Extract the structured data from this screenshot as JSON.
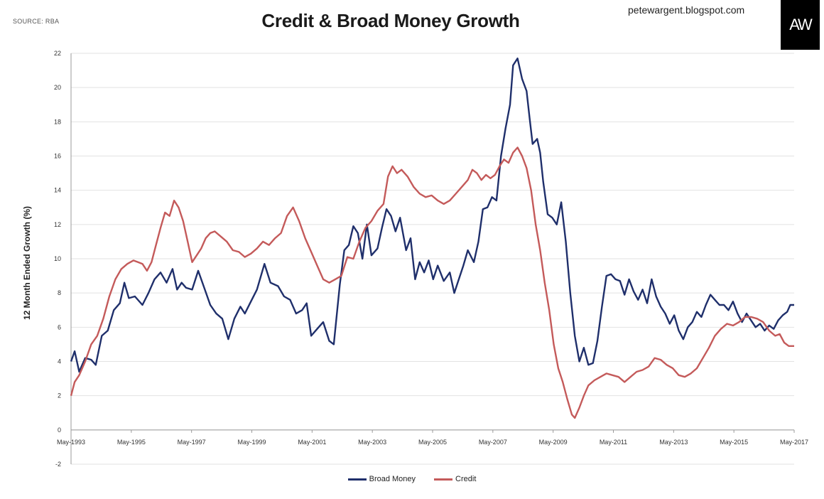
{
  "header": {
    "source": "SOURCE: RBA",
    "title": "Credit & Broad Money Growth",
    "blog": "petewargent.blogspot.com",
    "logo_text": "AW"
  },
  "colors": {
    "broad_money": "#1f2f6b",
    "credit": "#c45a5a",
    "grid": "#e2e2e2",
    "axis": "#999999"
  },
  "chart_data": {
    "type": "line",
    "title": "Credit & Broad Money Growth",
    "xlabel": "",
    "ylabel": "12 Month Ended Growth (%)",
    "ylim": [
      -2,
      22
    ],
    "yticks": [
      -2,
      0,
      2,
      4,
      6,
      8,
      10,
      12,
      14,
      16,
      18,
      20,
      22
    ],
    "xlim": [
      1993.33,
      2017.33
    ],
    "xticks": [
      {
        "x": 1993.33,
        "label": "May-1993"
      },
      {
        "x": 1995.33,
        "label": "May-1995"
      },
      {
        "x": 1997.33,
        "label": "May-1997"
      },
      {
        "x": 1999.33,
        "label": "May-1999"
      },
      {
        "x": 2001.33,
        "label": "May-2001"
      },
      {
        "x": 2003.33,
        "label": "May-2003"
      },
      {
        "x": 2005.33,
        "label": "May-2005"
      },
      {
        "x": 2007.33,
        "label": "May-2007"
      },
      {
        "x": 2009.33,
        "label": "May-2009"
      },
      {
        "x": 2011.33,
        "label": "May-2011"
      },
      {
        "x": 2013.33,
        "label": "May-2013"
      },
      {
        "x": 2015.33,
        "label": "May-2015"
      },
      {
        "x": 2017.33,
        "label": "May-2017"
      }
    ],
    "grid": true,
    "legend_position": "bottom-center",
    "series": [
      {
        "name": "Broad Money",
        "points": [
          [
            1993.33,
            4.0
          ],
          [
            1993.45,
            4.6
          ],
          [
            1993.6,
            3.4
          ],
          [
            1993.8,
            4.2
          ],
          [
            1994.0,
            4.1
          ],
          [
            1994.15,
            3.8
          ],
          [
            1994.35,
            5.5
          ],
          [
            1994.55,
            5.8
          ],
          [
            1994.75,
            7.0
          ],
          [
            1994.95,
            7.4
          ],
          [
            1995.1,
            8.6
          ],
          [
            1995.25,
            7.7
          ],
          [
            1995.45,
            7.8
          ],
          [
            1995.7,
            7.3
          ],
          [
            1995.9,
            8.0
          ],
          [
            1996.1,
            8.8
          ],
          [
            1996.3,
            9.2
          ],
          [
            1996.5,
            8.6
          ],
          [
            1996.7,
            9.4
          ],
          [
            1996.85,
            8.2
          ],
          [
            1997.0,
            8.6
          ],
          [
            1997.15,
            8.3
          ],
          [
            1997.35,
            8.2
          ],
          [
            1997.55,
            9.3
          ],
          [
            1997.75,
            8.3
          ],
          [
            1997.95,
            7.3
          ],
          [
            1998.15,
            6.8
          ],
          [
            1998.35,
            6.5
          ],
          [
            1998.55,
            5.3
          ],
          [
            1998.75,
            6.5
          ],
          [
            1998.95,
            7.2
          ],
          [
            1999.1,
            6.8
          ],
          [
            1999.3,
            7.5
          ],
          [
            1999.5,
            8.2
          ],
          [
            1999.75,
            9.7
          ],
          [
            1999.95,
            8.6
          ],
          [
            2000.2,
            8.4
          ],
          [
            2000.4,
            7.8
          ],
          [
            2000.6,
            7.6
          ],
          [
            2000.8,
            6.8
          ],
          [
            2001.0,
            7.0
          ],
          [
            2001.15,
            7.4
          ],
          [
            2001.3,
            5.5
          ],
          [
            2001.5,
            5.9
          ],
          [
            2001.7,
            6.3
          ],
          [
            2001.9,
            5.2
          ],
          [
            2002.05,
            5.0
          ],
          [
            2002.25,
            8.5
          ],
          [
            2002.4,
            10.5
          ],
          [
            2002.55,
            10.8
          ],
          [
            2002.7,
            11.9
          ],
          [
            2002.85,
            11.5
          ],
          [
            2003.0,
            10.0
          ],
          [
            2003.15,
            12.0
          ],
          [
            2003.3,
            10.2
          ],
          [
            2003.5,
            10.6
          ],
          [
            2003.65,
            11.8
          ],
          [
            2003.8,
            12.9
          ],
          [
            2003.95,
            12.5
          ],
          [
            2004.1,
            11.6
          ],
          [
            2004.25,
            12.4
          ],
          [
            2004.45,
            10.5
          ],
          [
            2004.6,
            11.2
          ],
          [
            2004.75,
            8.8
          ],
          [
            2004.9,
            9.8
          ],
          [
            2005.05,
            9.2
          ],
          [
            2005.2,
            9.9
          ],
          [
            2005.35,
            8.8
          ],
          [
            2005.5,
            9.6
          ],
          [
            2005.7,
            8.7
          ],
          [
            2005.9,
            9.2
          ],
          [
            2006.05,
            8.0
          ],
          [
            2006.2,
            8.8
          ],
          [
            2006.35,
            9.6
          ],
          [
            2006.5,
            10.5
          ],
          [
            2006.7,
            9.8
          ],
          [
            2006.85,
            11.0
          ],
          [
            2007.0,
            12.9
          ],
          [
            2007.15,
            13.0
          ],
          [
            2007.3,
            13.6
          ],
          [
            2007.45,
            13.4
          ],
          [
            2007.6,
            16.0
          ],
          [
            2007.75,
            17.6
          ],
          [
            2007.9,
            19.0
          ],
          [
            2008.0,
            21.3
          ],
          [
            2008.15,
            21.7
          ],
          [
            2008.3,
            20.5
          ],
          [
            2008.45,
            19.8
          ],
          [
            2008.55,
            18.2
          ],
          [
            2008.65,
            16.7
          ],
          [
            2008.8,
            17.0
          ],
          [
            2008.9,
            16.2
          ],
          [
            2009.0,
            14.5
          ],
          [
            2009.15,
            12.6
          ],
          [
            2009.3,
            12.4
          ],
          [
            2009.45,
            12.0
          ],
          [
            2009.6,
            13.3
          ],
          [
            2009.75,
            11.0
          ],
          [
            2009.9,
            8.0
          ],
          [
            2010.05,
            5.5
          ],
          [
            2010.2,
            4.0
          ],
          [
            2010.35,
            4.8
          ],
          [
            2010.5,
            3.8
          ],
          [
            2010.65,
            3.9
          ],
          [
            2010.8,
            5.2
          ],
          [
            2010.95,
            7.2
          ],
          [
            2011.1,
            9.0
          ],
          [
            2011.25,
            9.1
          ],
          [
            2011.4,
            8.8
          ],
          [
            2011.55,
            8.7
          ],
          [
            2011.7,
            7.9
          ],
          [
            2011.85,
            8.8
          ],
          [
            2012.0,
            8.1
          ],
          [
            2012.15,
            7.6
          ],
          [
            2012.3,
            8.2
          ],
          [
            2012.45,
            7.4
          ],
          [
            2012.6,
            8.8
          ],
          [
            2012.75,
            7.8
          ],
          [
            2012.9,
            7.2
          ],
          [
            2013.05,
            6.8
          ],
          [
            2013.2,
            6.2
          ],
          [
            2013.35,
            6.7
          ],
          [
            2013.5,
            5.8
          ],
          [
            2013.65,
            5.3
          ],
          [
            2013.8,
            6.0
          ],
          [
            2013.95,
            6.3
          ],
          [
            2014.1,
            6.9
          ],
          [
            2014.25,
            6.6
          ],
          [
            2014.4,
            7.3
          ],
          [
            2014.55,
            7.9
          ],
          [
            2014.7,
            7.6
          ],
          [
            2014.85,
            7.3
          ],
          [
            2015.0,
            7.3
          ],
          [
            2015.15,
            7.0
          ],
          [
            2015.3,
            7.5
          ],
          [
            2015.45,
            6.8
          ],
          [
            2015.6,
            6.3
          ],
          [
            2015.75,
            6.8
          ],
          [
            2015.9,
            6.4
          ],
          [
            2016.05,
            6.0
          ],
          [
            2016.2,
            6.2
          ],
          [
            2016.35,
            5.8
          ],
          [
            2016.5,
            6.1
          ],
          [
            2016.65,
            5.9
          ],
          [
            2016.8,
            6.4
          ],
          [
            2016.95,
            6.7
          ],
          [
            2017.1,
            6.9
          ],
          [
            2017.2,
            7.3
          ],
          [
            2017.33,
            7.3
          ]
        ]
      },
      {
        "name": "Credit",
        "points": [
          [
            1993.33,
            2.0
          ],
          [
            1993.45,
            2.8
          ],
          [
            1993.6,
            3.2
          ],
          [
            1993.8,
            4.0
          ],
          [
            1994.0,
            5.0
          ],
          [
            1994.2,
            5.5
          ],
          [
            1994.4,
            6.5
          ],
          [
            1994.6,
            7.8
          ],
          [
            1994.8,
            8.8
          ],
          [
            1995.0,
            9.4
          ],
          [
            1995.2,
            9.7
          ],
          [
            1995.4,
            9.9
          ],
          [
            1995.55,
            9.8
          ],
          [
            1995.7,
            9.7
          ],
          [
            1995.85,
            9.3
          ],
          [
            1996.0,
            9.8
          ],
          [
            1996.15,
            10.8
          ],
          [
            1996.3,
            11.8
          ],
          [
            1996.45,
            12.7
          ],
          [
            1996.6,
            12.5
          ],
          [
            1996.75,
            13.4
          ],
          [
            1996.9,
            13.0
          ],
          [
            1997.05,
            12.2
          ],
          [
            1997.2,
            11.0
          ],
          [
            1997.35,
            9.8
          ],
          [
            1997.5,
            10.2
          ],
          [
            1997.65,
            10.6
          ],
          [
            1997.8,
            11.2
          ],
          [
            1997.95,
            11.5
          ],
          [
            1998.1,
            11.6
          ],
          [
            1998.3,
            11.3
          ],
          [
            1998.5,
            11.0
          ],
          [
            1998.7,
            10.5
          ],
          [
            1998.9,
            10.4
          ],
          [
            1999.1,
            10.1
          ],
          [
            1999.3,
            10.3
          ],
          [
            1999.5,
            10.6
          ],
          [
            1999.7,
            11.0
          ],
          [
            1999.9,
            10.8
          ],
          [
            2000.1,
            11.2
          ],
          [
            2000.3,
            11.5
          ],
          [
            2000.5,
            12.5
          ],
          [
            2000.7,
            13.0
          ],
          [
            2000.9,
            12.2
          ],
          [
            2001.1,
            11.2
          ],
          [
            2001.3,
            10.4
          ],
          [
            2001.5,
            9.6
          ],
          [
            2001.7,
            8.8
          ],
          [
            2001.9,
            8.6
          ],
          [
            2002.1,
            8.8
          ],
          [
            2002.3,
            9.0
          ],
          [
            2002.5,
            10.1
          ],
          [
            2002.7,
            10.0
          ],
          [
            2002.9,
            11.0
          ],
          [
            2003.1,
            11.8
          ],
          [
            2003.3,
            12.2
          ],
          [
            2003.5,
            12.8
          ],
          [
            2003.7,
            13.2
          ],
          [
            2003.85,
            14.8
          ],
          [
            2004.0,
            15.4
          ],
          [
            2004.15,
            15.0
          ],
          [
            2004.3,
            15.2
          ],
          [
            2004.5,
            14.8
          ],
          [
            2004.7,
            14.2
          ],
          [
            2004.9,
            13.8
          ],
          [
            2005.1,
            13.6
          ],
          [
            2005.3,
            13.7
          ],
          [
            2005.5,
            13.4
          ],
          [
            2005.7,
            13.2
          ],
          [
            2005.9,
            13.4
          ],
          [
            2006.1,
            13.8
          ],
          [
            2006.3,
            14.2
          ],
          [
            2006.5,
            14.6
          ],
          [
            2006.65,
            15.2
          ],
          [
            2006.8,
            15.0
          ],
          [
            2006.95,
            14.6
          ],
          [
            2007.1,
            14.9
          ],
          [
            2007.25,
            14.7
          ],
          [
            2007.4,
            14.9
          ],
          [
            2007.55,
            15.4
          ],
          [
            2007.7,
            15.8
          ],
          [
            2007.85,
            15.6
          ],
          [
            2008.0,
            16.2
          ],
          [
            2008.15,
            16.5
          ],
          [
            2008.3,
            16.0
          ],
          [
            2008.45,
            15.3
          ],
          [
            2008.6,
            14.0
          ],
          [
            2008.75,
            12.0
          ],
          [
            2008.9,
            10.5
          ],
          [
            2009.05,
            8.6
          ],
          [
            2009.2,
            7.0
          ],
          [
            2009.35,
            5.0
          ],
          [
            2009.5,
            3.6
          ],
          [
            2009.65,
            2.8
          ],
          [
            2009.8,
            1.8
          ],
          [
            2009.95,
            0.9
          ],
          [
            2010.05,
            0.7
          ],
          [
            2010.2,
            1.3
          ],
          [
            2010.35,
            2.0
          ],
          [
            2010.5,
            2.6
          ],
          [
            2010.7,
            2.9
          ],
          [
            2010.9,
            3.1
          ],
          [
            2011.1,
            3.3
          ],
          [
            2011.3,
            3.2
          ],
          [
            2011.5,
            3.1
          ],
          [
            2011.7,
            2.8
          ],
          [
            2011.9,
            3.1
          ],
          [
            2012.1,
            3.4
          ],
          [
            2012.3,
            3.5
          ],
          [
            2012.5,
            3.7
          ],
          [
            2012.7,
            4.2
          ],
          [
            2012.9,
            4.1
          ],
          [
            2013.1,
            3.8
          ],
          [
            2013.3,
            3.6
          ],
          [
            2013.5,
            3.2
          ],
          [
            2013.7,
            3.1
          ],
          [
            2013.9,
            3.3
          ],
          [
            2014.1,
            3.6
          ],
          [
            2014.3,
            4.2
          ],
          [
            2014.5,
            4.8
          ],
          [
            2014.7,
            5.5
          ],
          [
            2014.9,
            5.9
          ],
          [
            2015.1,
            6.2
          ],
          [
            2015.3,
            6.1
          ],
          [
            2015.5,
            6.3
          ],
          [
            2015.7,
            6.6
          ],
          [
            2015.9,
            6.6
          ],
          [
            2016.1,
            6.5
          ],
          [
            2016.3,
            6.3
          ],
          [
            2016.5,
            5.8
          ],
          [
            2016.7,
            5.5
          ],
          [
            2016.85,
            5.6
          ],
          [
            2017.0,
            5.1
          ],
          [
            2017.15,
            4.9
          ],
          [
            2017.33,
            4.9
          ]
        ]
      }
    ]
  }
}
